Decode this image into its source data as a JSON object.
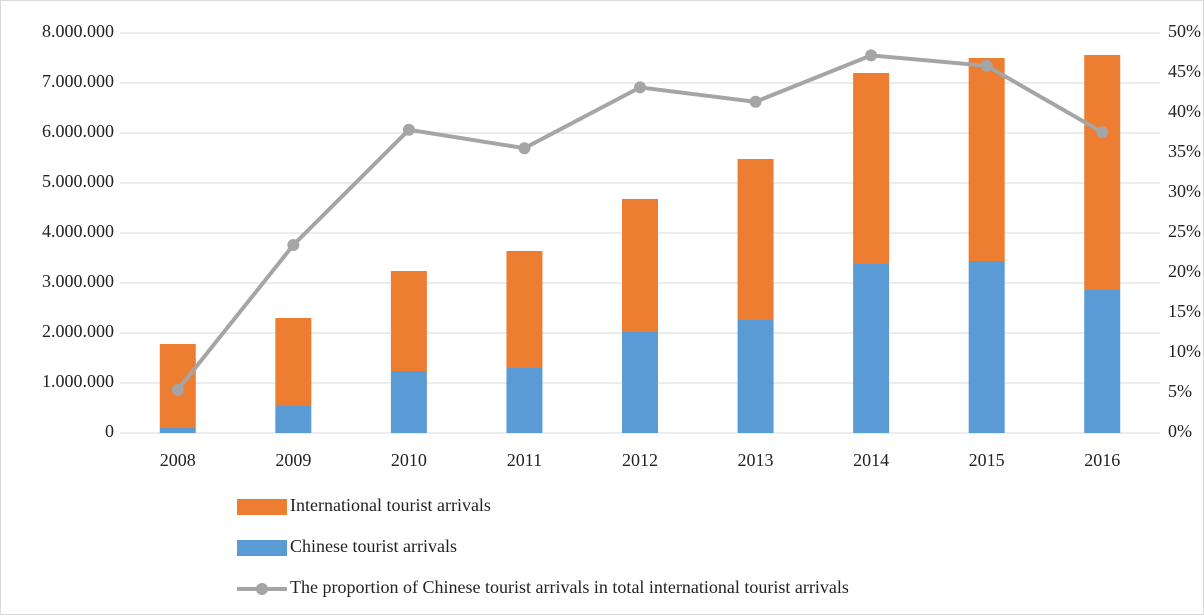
{
  "chart_data": {
    "type": "bar-line",
    "categories": [
      "2008",
      "2009",
      "2010",
      "2011",
      "2012",
      "2013",
      "2014",
      "2015",
      "2016"
    ],
    "series": [
      {
        "name": "Chinese tourist arrivals",
        "color": "#5b9bd5",
        "kind": "bar",
        "values": [
          100000,
          540000,
          1240000,
          1300000,
          2020000,
          2260000,
          3380000,
          3440000,
          2860000
        ]
      },
      {
        "name": "International tourist arrivals",
        "color": "#ed7d31",
        "kind": "bar",
        "values": [
          1680000,
          1760000,
          2000000,
          2340000,
          2660000,
          3220000,
          3820000,
          4060000,
          4700000
        ]
      },
      {
        "name": "The proportion of Chinese tourist arrivals in total international tourist arrivals",
        "color": "#a5a5a5",
        "kind": "line",
        "axis": "y2",
        "values": [
          5.4,
          23.5,
          37.9,
          35.6,
          43.2,
          41.4,
          47.2,
          45.9,
          37.6
        ]
      }
    ],
    "ylim": [
      0,
      8000000
    ],
    "yticks": [
      0,
      {
        "value": 1000000,
        "label": "1.000.000"
      },
      {
        "value": 2000000,
        "label": "2.000.000"
      },
      {
        "value": 3000000,
        "label": "3.000.000"
      },
      {
        "value": 4000000,
        "label": "4.000.000"
      },
      {
        "value": 5000000,
        "label": "5.000.000"
      },
      {
        "value": 6000000,
        "label": "6.000.000"
      },
      {
        "value": 7000000,
        "label": "7.000.000"
      },
      {
        "value": 8000000,
        "label": "8.000.000"
      }
    ],
    "y2lim": [
      0,
      50
    ],
    "y2ticks": [
      {
        "value": 0,
        "label": "0%"
      },
      {
        "value": 5,
        "label": "5%"
      },
      {
        "value": 10,
        "label": "10%"
      },
      {
        "value": 15,
        "label": "15%"
      },
      {
        "value": 20,
        "label": "20%"
      },
      {
        "value": 25,
        "label": "25%"
      },
      {
        "value": 30,
        "label": "30%"
      },
      {
        "value": 35,
        "label": "35%"
      },
      {
        "value": 40,
        "label": "40%"
      },
      {
        "value": 45,
        "label": "45%"
      },
      {
        "value": 50,
        "label": "50%"
      }
    ],
    "legend_order": [
      1,
      0,
      2
    ],
    "grid": true
  }
}
